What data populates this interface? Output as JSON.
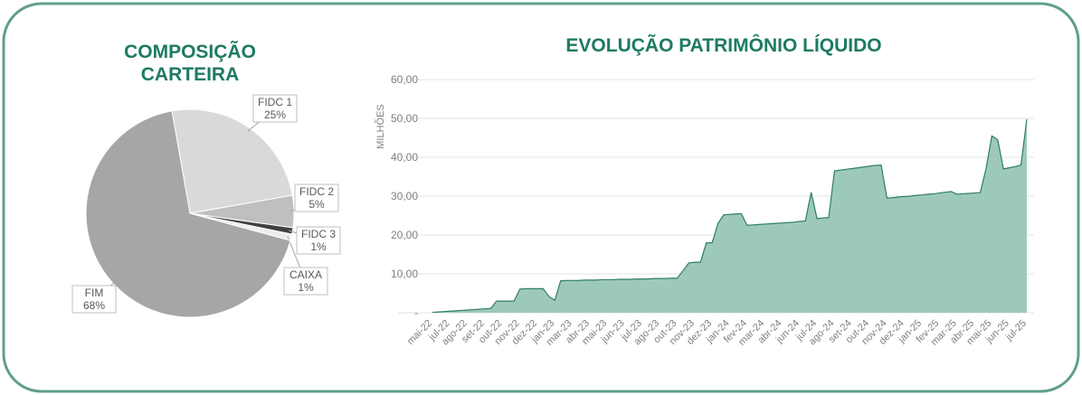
{
  "chart_data": [
    {
      "type": "pie",
      "title": "COMPOSIÇÃO CARTEIRA",
      "categories": [
        "FIDC 1",
        "FIDC 2",
        "FIDC 3",
        "CAIXA",
        "FIM"
      ],
      "values": [
        25,
        5,
        1,
        1,
        68
      ],
      "value_labels": [
        "25%",
        "5%",
        "1%",
        "1%",
        "68%"
      ],
      "colors": [
        "#d9d9d9",
        "#bfbfbf",
        "#404040",
        "#ededed",
        "#a6a6a6"
      ]
    },
    {
      "type": "area",
      "title": "EVOLUÇÃO PATRIMÔNIO LÍQUIDO",
      "y_label": "MILHÕES",
      "categories": [
        "mai-22",
        null,
        null,
        "jul-22",
        null,
        null,
        "ago-22",
        null,
        null,
        "set-22",
        null,
        null,
        "out-22",
        null,
        null,
        "nov-22",
        null,
        null,
        "dez-22",
        null,
        null,
        "jan-23",
        null,
        null,
        "mar-23",
        null,
        null,
        "abr-23",
        null,
        null,
        "mai-23",
        null,
        null,
        "jun-23",
        null,
        null,
        "jul-23",
        null,
        null,
        "ago-23",
        null,
        null,
        "out-23",
        null,
        null,
        "nov-23",
        null,
        null,
        "dez-23",
        null,
        null,
        "jan-24",
        null,
        null,
        "fev-24",
        null,
        null,
        "mar-24",
        null,
        null,
        "abr-24",
        null,
        null,
        "jun-24",
        null,
        null,
        "jul-24",
        null,
        null,
        "ago-24",
        null,
        null,
        "set-24",
        null,
        null,
        "out-24",
        null,
        null,
        "nov-24",
        null,
        null,
        "dez-24",
        null,
        null,
        "jan-25",
        null,
        null,
        "fev-25",
        null,
        null,
        "mar-25",
        null,
        null,
        "abr-25",
        null,
        null,
        "mai-25",
        null,
        null,
        "jun-25",
        null,
        null,
        "jul-25"
      ],
      "values": [
        0.1,
        0.2,
        0.3,
        0.4,
        0.5,
        0.6,
        0.7,
        0.8,
        0.9,
        1.0,
        1.1,
        3.0,
        3.0,
        3.0,
        3.0,
        6.1,
        6.2,
        6.2,
        6.2,
        6.2,
        4.2,
        3.2,
        8.2,
        8.3,
        8.3,
        8.3,
        8.4,
        8.4,
        8.4,
        8.5,
        8.5,
        8.5,
        8.6,
        8.6,
        8.6,
        8.7,
        8.7,
        8.7,
        8.8,
        8.8,
        8.8,
        8.9,
        8.9,
        10.8,
        12.8,
        13.0,
        13.0,
        18.0,
        18.0,
        23.0,
        25.2,
        25.3,
        25.4,
        25.5,
        22.5,
        22.6,
        22.7,
        22.8,
        22.9,
        23.0,
        23.1,
        23.2,
        23.3,
        23.5,
        23.6,
        31.0,
        24.2,
        24.4,
        24.5,
        36.5,
        36.7,
        36.9,
        37.1,
        37.3,
        37.5,
        37.7,
        37.9,
        38.0,
        29.5,
        29.6,
        29.8,
        29.9,
        30.0,
        30.2,
        30.3,
        30.5,
        30.6,
        30.8,
        31.0,
        31.2,
        30.5,
        30.6,
        30.7,
        30.8,
        30.9,
        37.0,
        45.5,
        44.5,
        37.0,
        37.3,
        37.6,
        38.0,
        49.8
      ],
      "color": "#9dc9bb",
      "line_color": "#2f7d69",
      "ylim": [
        0,
        60
      ],
      "yticks": [
        {
          "value": 0,
          "label": "-"
        },
        {
          "value": 10,
          "label": "10,00"
        },
        {
          "value": 20,
          "label": "20,00"
        },
        {
          "value": 30,
          "label": "30,00"
        },
        {
          "value": 40,
          "label": "40,00"
        },
        {
          "value": 50,
          "label": "50,00"
        },
        {
          "value": 60,
          "label": "60,00"
        }
      ],
      "grid": true
    }
  ]
}
